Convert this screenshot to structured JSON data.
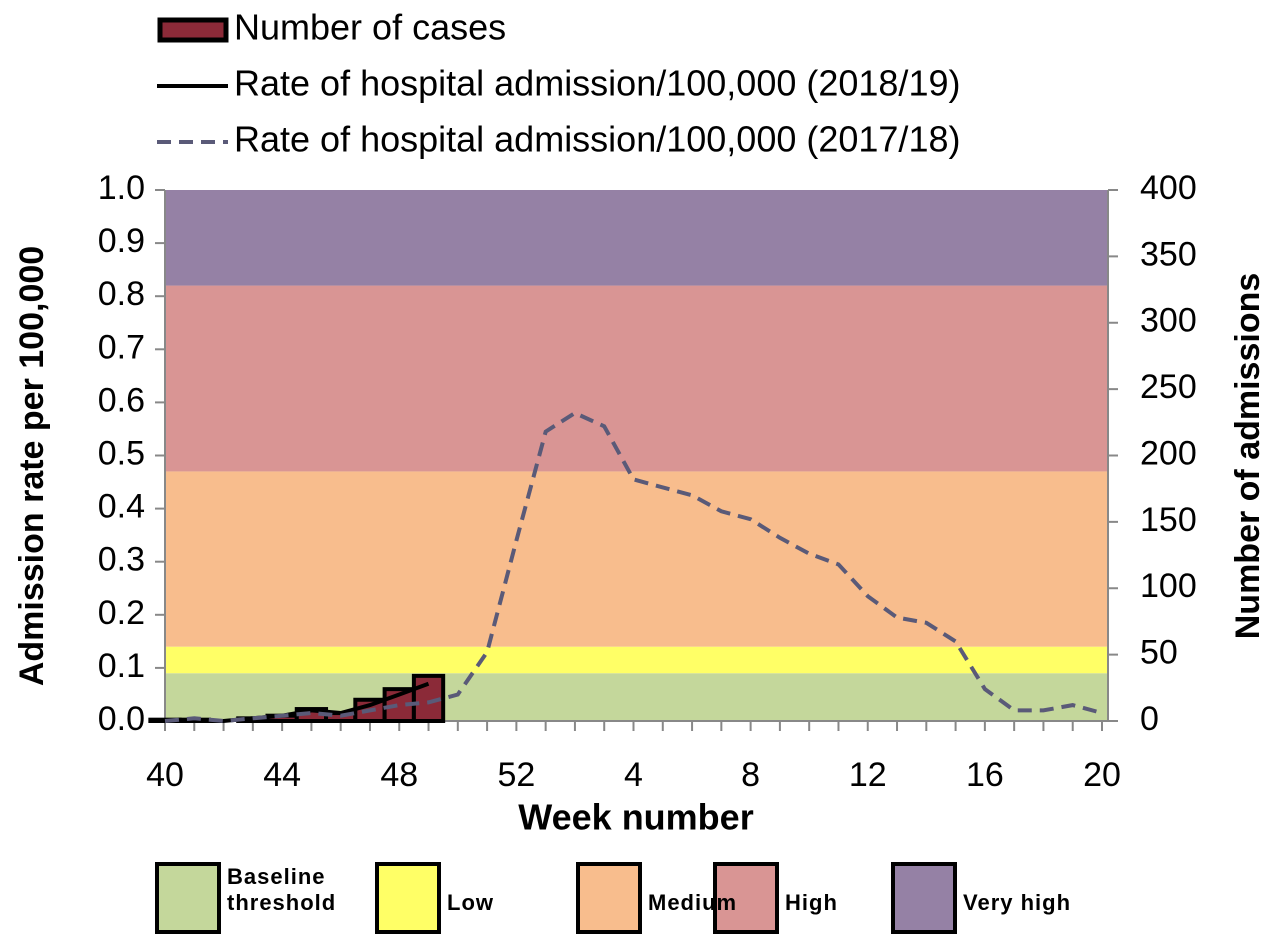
{
  "chart_data": {
    "type": "combo",
    "x_label": "Week number",
    "y_label": "Admission rate per 100,000",
    "y2_label": "Number of admissions",
    "categories": [
      40,
      null,
      null,
      null,
      44,
      null,
      null,
      null,
      48,
      null,
      null,
      null,
      52,
      null,
      null,
      null,
      4,
      null,
      null,
      null,
      8,
      null,
      null,
      null,
      12,
      null,
      null,
      null,
      16,
      null,
      null,
      null,
      20
    ],
    "ylim": [
      0,
      1
    ],
    "yticks": [
      {
        "value": 0,
        "label": "0.0"
      },
      0.1,
      0.2,
      0.3,
      0.4,
      0.5,
      0.6,
      0.7,
      0.8,
      0.9,
      {
        "value": 1,
        "label": "1.0"
      }
    ],
    "y2lim": [
      0,
      400
    ],
    "y2ticks": [
      0,
      50,
      100,
      150,
      200,
      250,
      300,
      350,
      400
    ],
    "bands": [
      {
        "name": "Baseline threshold",
        "color": "#c4d79b",
        "range": [
          0,
          0.09
        ]
      },
      {
        "name": "Low",
        "color": "#ffff66",
        "range": [
          0.09,
          0.14
        ]
      },
      {
        "name": "Medium",
        "color": "#f8bd8d",
        "range": [
          0.14,
          0.47
        ]
      },
      {
        "name": "High",
        "color": "#d99594",
        "range": [
          0.47,
          0.82
        ]
      },
      {
        "name": "Very high",
        "color": "#9581a5",
        "range": [
          0.82,
          1
        ]
      }
    ],
    "series": [
      {
        "name": "Number of cases",
        "type": "bar",
        "axis": "y2",
        "color": "#8b2a38",
        "values": [
          1,
          1,
          0,
          2,
          4,
          9,
          6,
          16,
          24,
          34,
          null,
          null,
          null,
          null,
          null,
          null,
          null,
          null,
          null,
          null,
          null,
          null,
          null,
          null,
          null,
          null,
          null,
          null,
          null,
          null,
          null,
          null,
          null
        ]
      },
      {
        "name": "Rate of hospital admission/100,000 (2018/19)",
        "type": "line",
        "color": "#000000",
        "dashed": false,
        "values": [
          0,
          0,
          0,
          0.005,
          0.01,
          0.02,
          0.015,
          0.03,
          0.05,
          0.07,
          null,
          null,
          null,
          null,
          null,
          null,
          null,
          null,
          null,
          null,
          null,
          null,
          null,
          null,
          null,
          null,
          null,
          null,
          null,
          null,
          null,
          null,
          null
        ]
      },
      {
        "name": "Rate of hospital admission/100,000 (2017/18)",
        "type": "line",
        "color": "#5a5a78",
        "dashed": true,
        "values": [
          0,
          0.005,
          0,
          0.005,
          0.01,
          0.015,
          0.01,
          0.02,
          0.03,
          0.035,
          0.05,
          0.13,
          0.34,
          0.545,
          0.58,
          0.555,
          0.455,
          0.44,
          0.425,
          0.395,
          0.38,
          0.345,
          0.315,
          0.295,
          0.235,
          0.195,
          0.185,
          0.15,
          0.06,
          0.02,
          0.02,
          0.03,
          0.015
        ]
      }
    ]
  }
}
